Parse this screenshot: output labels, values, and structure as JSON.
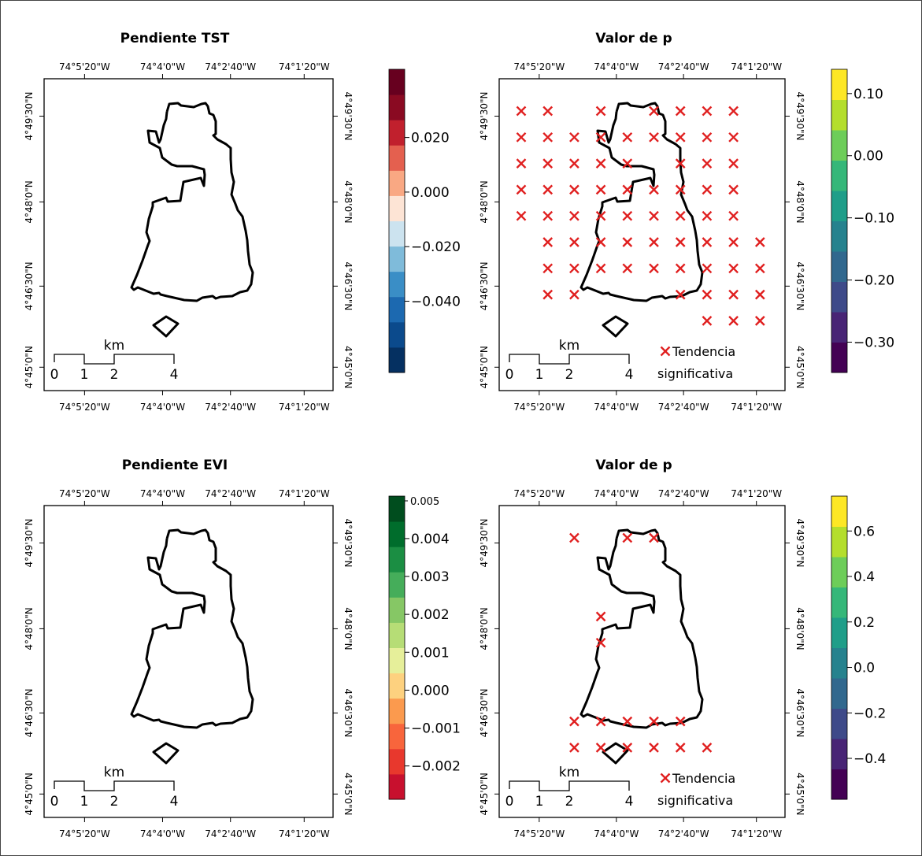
{
  "lon_labels": [
    "74°5'20\"W",
    "74°4'0\"W",
    "74°2'40\"W",
    "74°1'20\"W"
  ],
  "lat_labels": [
    "4°49'30\"N",
    "4°48'0\"N",
    "4°46'30\"N",
    "4°45'0\"N"
  ],
  "scale_bar": {
    "unit": "km",
    "ticks": [
      "0",
      "1",
      "2",
      "4"
    ]
  },
  "legend_label_line1": "Tendencia",
  "legend_label_line2": "significativa",
  "marker_color": "#e02020",
  "panels": [
    {
      "title": "Pendiente TST",
      "colorbar": {
        "colors": [
          "#053061",
          "#0b4a8c",
          "#1c69b0",
          "#3a8ec6",
          "#7fbbda",
          "#cce3ef",
          "#fde4d5",
          "#f9a883",
          "#e4604f",
          "#c1202d",
          "#8a0a22",
          "#67001f"
        ],
        "labels": [
          "0.020",
          "0.000",
          "−0.020",
          "−0.040"
        ],
        "label_fracs": [
          0.775,
          0.595,
          0.415,
          0.235
        ],
        "small": false
      }
    },
    {
      "title": "Valor de p",
      "colorbar": {
        "colors": [
          "#440154",
          "#482475",
          "#3e4a89",
          "#31688e",
          "#26828e",
          "#1f9e89",
          "#35b779",
          "#6dcd59",
          "#b4de2c",
          "#fde725"
        ],
        "labels": [
          "0.10",
          "0.00",
          "−0.10",
          "−0.20",
          "−0.30"
        ],
        "label_fracs": [
          0.92,
          0.715,
          0.51,
          0.305,
          0.1
        ],
        "small": false
      },
      "markers": [
        [
          1,
          1
        ],
        [
          2,
          1
        ],
        [
          4,
          1
        ],
        [
          6,
          1
        ],
        [
          7,
          1
        ],
        [
          8,
          1
        ],
        [
          9,
          1
        ],
        [
          1,
          2
        ],
        [
          2,
          2
        ],
        [
          3,
          2
        ],
        [
          4,
          2
        ],
        [
          5,
          2
        ],
        [
          6,
          2
        ],
        [
          7,
          2
        ],
        [
          8,
          2
        ],
        [
          9,
          2
        ],
        [
          1,
          3
        ],
        [
          2,
          3
        ],
        [
          3,
          3
        ],
        [
          4,
          3
        ],
        [
          5,
          3
        ],
        [
          7,
          3
        ],
        [
          8,
          3
        ],
        [
          9,
          3
        ],
        [
          1,
          4
        ],
        [
          2,
          4
        ],
        [
          3,
          4
        ],
        [
          4,
          4
        ],
        [
          5,
          4
        ],
        [
          6,
          4
        ],
        [
          7,
          4
        ],
        [
          8,
          4
        ],
        [
          9,
          4
        ],
        [
          1,
          5
        ],
        [
          2,
          5
        ],
        [
          3,
          5
        ],
        [
          4,
          5
        ],
        [
          5,
          5
        ],
        [
          6,
          5
        ],
        [
          7,
          5
        ],
        [
          8,
          5
        ],
        [
          9,
          5
        ],
        [
          2,
          6
        ],
        [
          3,
          6
        ],
        [
          4,
          6
        ],
        [
          5,
          6
        ],
        [
          6,
          6
        ],
        [
          7,
          6
        ],
        [
          8,
          6
        ],
        [
          9,
          6
        ],
        [
          10,
          6
        ],
        [
          2,
          7
        ],
        [
          3,
          7
        ],
        [
          4,
          7
        ],
        [
          5,
          7
        ],
        [
          6,
          7
        ],
        [
          7,
          7
        ],
        [
          8,
          7
        ],
        [
          9,
          7
        ],
        [
          10,
          7
        ],
        [
          2,
          8
        ],
        [
          3,
          8
        ],
        [
          7,
          8
        ],
        [
          8,
          8
        ],
        [
          9,
          8
        ],
        [
          10,
          8
        ],
        [
          8,
          9
        ],
        [
          9,
          9
        ],
        [
          10,
          9
        ]
      ]
    },
    {
      "title": "Pendiente EVI",
      "colorbar": {
        "colors": [
          "#c8102e",
          "#e8382d",
          "#f8653c",
          "#fb9a4e",
          "#fdd17f",
          "#e6ef9a",
          "#b6dd76",
          "#86c765",
          "#45ad5a",
          "#1b8e43",
          "#006d2c",
          "#004d1e"
        ],
        "labels": [
          "0.004",
          "0.003",
          "0.002",
          "0.001",
          "0.000",
          "−0.001",
          "−0.002"
        ],
        "label_fracs": [
          0.86,
          0.735,
          0.61,
          0.485,
          0.36,
          0.235,
          0.11
        ],
        "small": false,
        "top_label": "0.005"
      }
    },
    {
      "title": "Valor de p",
      "colorbar": {
        "colors": [
          "#440154",
          "#482475",
          "#3e4a89",
          "#31688e",
          "#26828e",
          "#1f9e89",
          "#35b779",
          "#6dcd59",
          "#b4de2c",
          "#fde725"
        ],
        "labels": [
          "0.6",
          "0.4",
          "0.2",
          "0.0",
          "−0.2",
          "−0.4"
        ],
        "label_fracs": [
          0.885,
          0.735,
          0.585,
          0.435,
          0.285,
          0.135
        ],
        "small": false
      },
      "markers": [
        [
          3,
          1
        ],
        [
          5,
          1
        ],
        [
          6,
          1
        ],
        [
          4,
          4
        ],
        [
          4,
          5
        ],
        [
          3,
          8
        ],
        [
          4,
          8
        ],
        [
          5,
          8
        ],
        [
          6,
          8
        ],
        [
          7,
          8
        ],
        [
          3,
          9
        ],
        [
          4,
          9
        ],
        [
          5,
          9
        ],
        [
          6,
          9
        ],
        [
          7,
          9
        ],
        [
          8,
          9
        ]
      ]
    }
  ]
}
